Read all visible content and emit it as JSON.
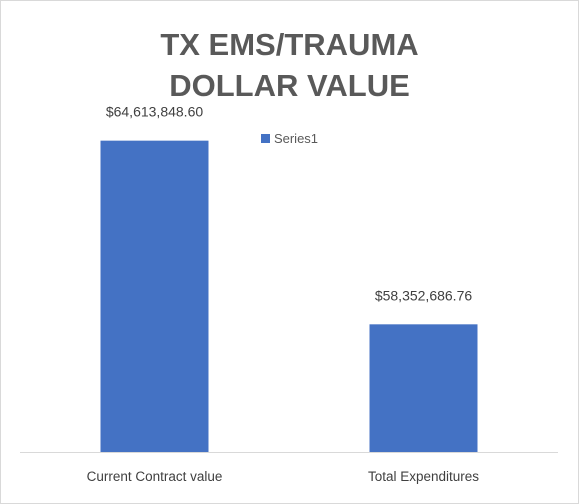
{
  "chart_data": {
    "type": "bar",
    "title": "TX EMS/TRAUMA\nDOLLAR VALUE",
    "categories": [
      "Current Contract value",
      "Total Expenditures"
    ],
    "series": [
      {
        "name": "Series1",
        "values": [
          64613848.6,
          58352686.76
        ]
      }
    ],
    "data_labels": [
      "$64,613,848.60",
      "$58,352,686.76"
    ],
    "ylim": [
      54000000,
      66000000
    ],
    "grid": false,
    "legend": "top",
    "bar_color": "#4472c4",
    "axis_color": "#d9d9d9"
  }
}
